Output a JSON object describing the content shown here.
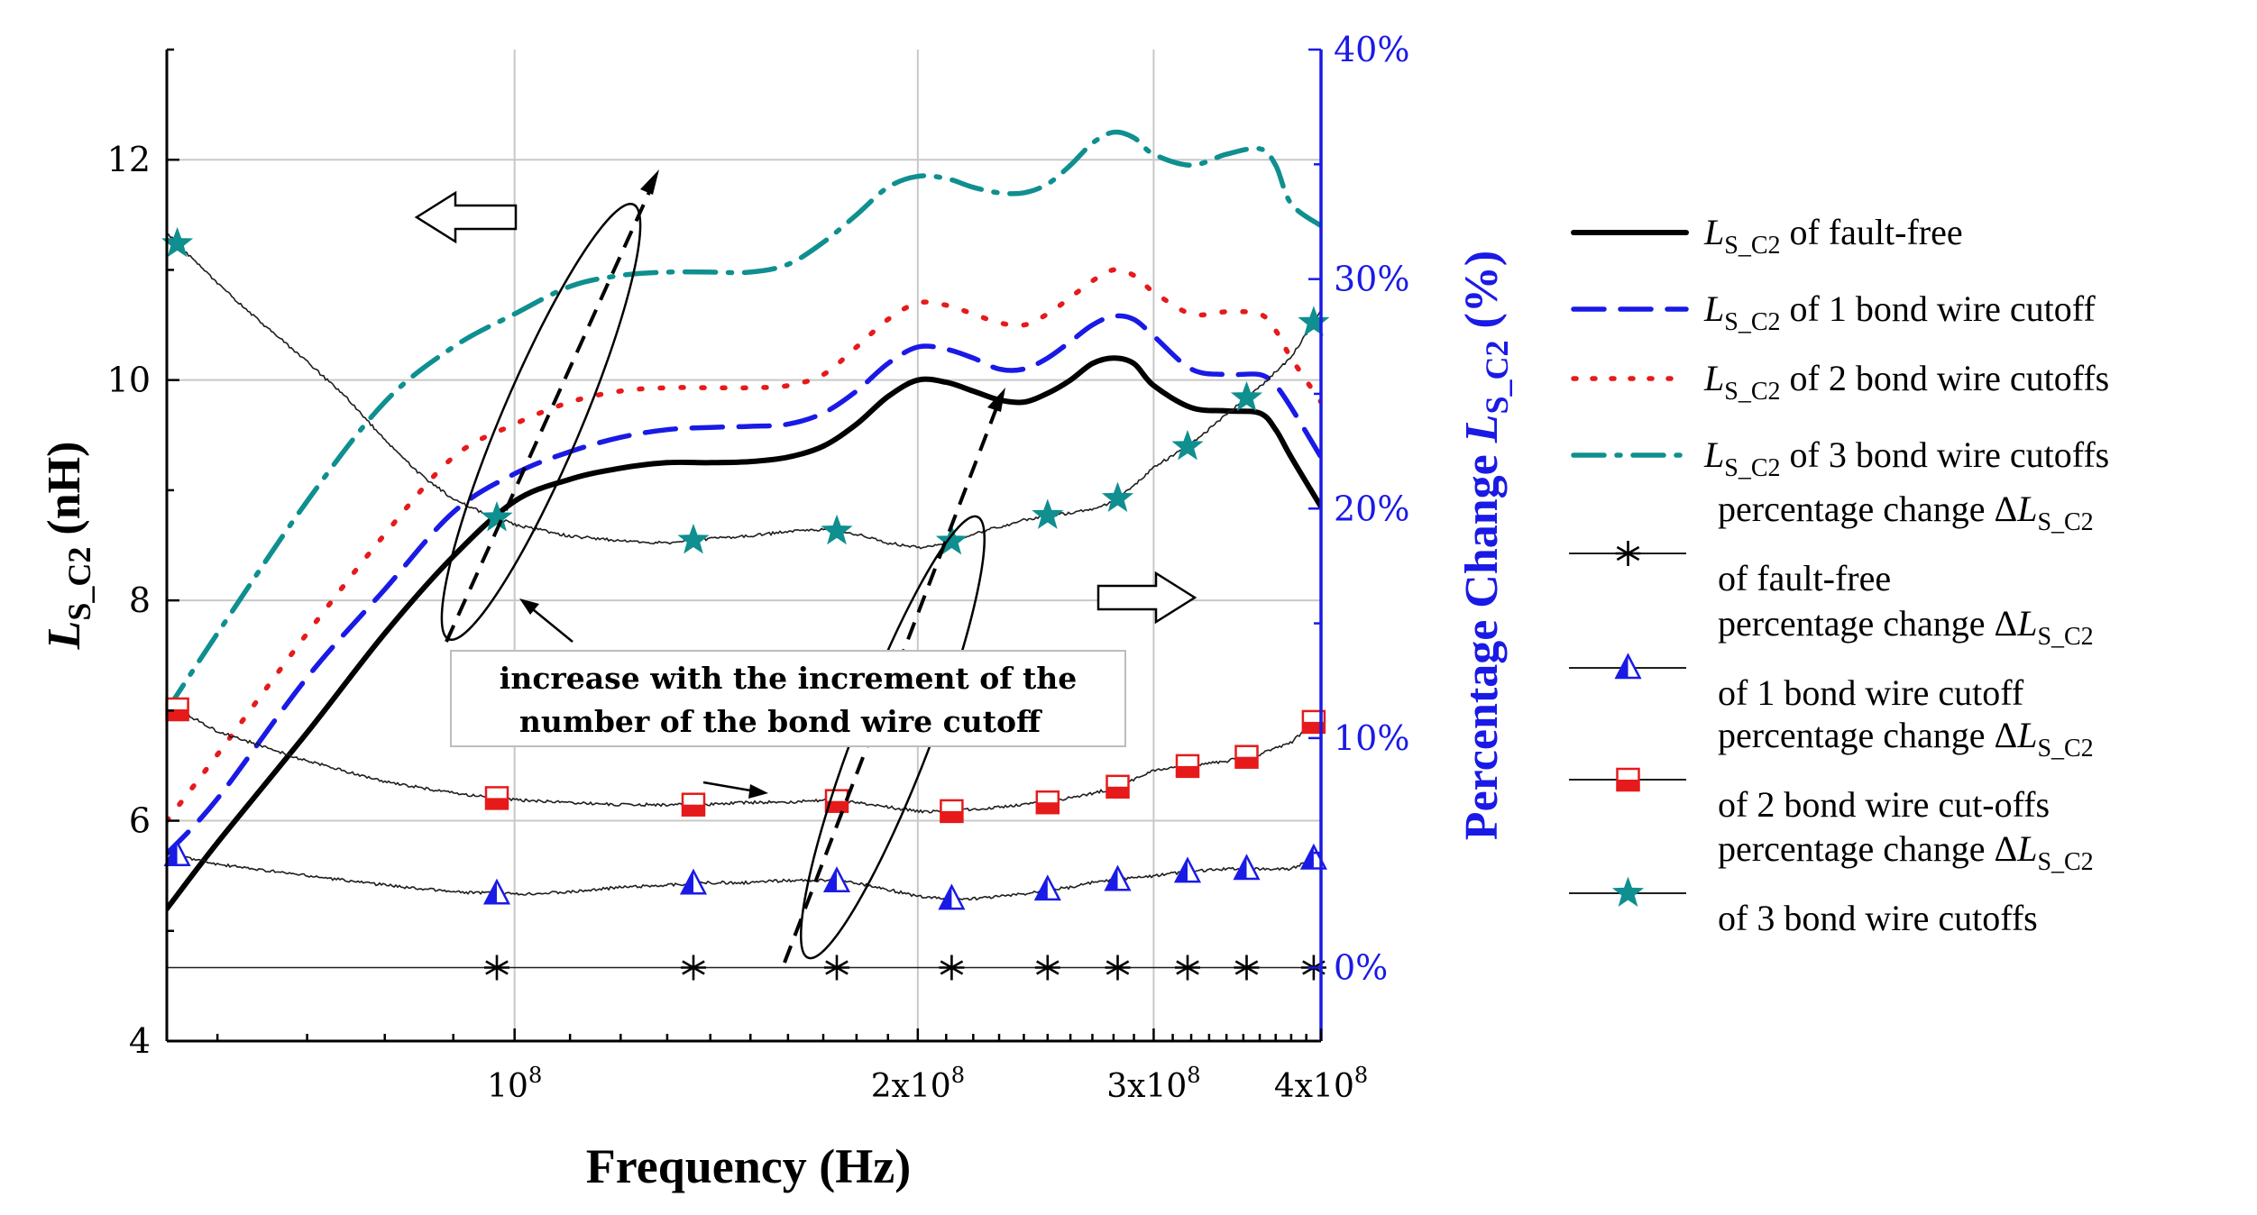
{
  "chart_data": {
    "type": "line",
    "title": "",
    "xlabel": "Frequency (Hz)",
    "xscale": "log",
    "xlim": [
      55000000,
      400000000
    ],
    "x_ticks": [
      {
        "value": 100000000,
        "mantissa": "10",
        "exp": "8"
      },
      {
        "value": 200000000,
        "mantissa": "2x10",
        "exp": "8"
      },
      {
        "value": 300000000,
        "mantissa": "3x10",
        "exp": "8"
      },
      {
        "value": 400000000,
        "mantissa": "4x10",
        "exp": "8"
      }
    ],
    "y_left": {
      "label": {
        "pre": "L",
        "sub": "S_C2",
        "post": " (nH)"
      },
      "lim": [
        4,
        13
      ],
      "ticks": [
        4,
        6,
        8,
        10,
        12
      ]
    },
    "y_right": {
      "label": {
        "pre": "Percentage Change ",
        "ital": "L",
        "sub": "S_C2",
        "post": " (%)"
      },
      "lim": [
        -3.2,
        40
      ],
      "ticks": [
        "0%",
        "10%",
        "20%",
        "30%",
        "40%"
      ],
      "color": "#1a1ae6"
    },
    "grid": true,
    "series": [
      {
        "name": "LS_C2 of fault-free",
        "legend": {
          "pre": "L",
          "sub": "S_C2",
          "post": " of fault-free"
        },
        "axis": "left",
        "style": "solid",
        "color": "#000000",
        "x": [
          55000000.0,
          60000000.0,
          70000000.0,
          80000000.0,
          90000000.0,
          100000000.0,
          110000000.0,
          120000000.0,
          130000000.0,
          140000000.0,
          150000000.0,
          160000000.0,
          170000000.0,
          180000000.0,
          190000000.0,
          200000000.0,
          210000000.0,
          220000000.0,
          230000000.0,
          240000000.0,
          250000000.0,
          260000000.0,
          270000000.0,
          280000000.0,
          290000000.0,
          300000000.0,
          320000000.0,
          340000000.0,
          360000000.0,
          370000000.0,
          380000000.0,
          400000000.0
        ],
        "y": [
          5.2,
          5.8,
          6.8,
          7.7,
          8.4,
          8.9,
          9.1,
          9.2,
          9.25,
          9.25,
          9.26,
          9.3,
          9.4,
          9.6,
          9.85,
          10.0,
          9.98,
          9.9,
          9.82,
          9.8,
          9.88,
          10.0,
          10.15,
          10.2,
          10.15,
          9.95,
          9.75,
          9.72,
          9.7,
          9.55,
          9.3,
          8.85
        ]
      },
      {
        "name": "LS_C2 of 1 bond wire cutoff",
        "legend": {
          "pre": "L",
          "sub": "S_C2",
          "post": " of 1 bond wire cutoff"
        },
        "axis": "left",
        "style": "dash",
        "color": "#1a1ae6",
        "x": [
          55000000.0,
          60000000.0,
          70000000.0,
          80000000.0,
          90000000.0,
          100000000.0,
          110000000.0,
          120000000.0,
          130000000.0,
          140000000.0,
          150000000.0,
          160000000.0,
          170000000.0,
          180000000.0,
          190000000.0,
          200000000.0,
          210000000.0,
          220000000.0,
          230000000.0,
          240000000.0,
          250000000.0,
          260000000.0,
          270000000.0,
          280000000.0,
          290000000.0,
          300000000.0,
          320000000.0,
          340000000.0,
          360000000.0,
          370000000.0,
          380000000.0,
          400000000.0
        ],
        "y": [
          5.7,
          6.2,
          7.3,
          8.1,
          8.8,
          9.15,
          9.35,
          9.48,
          9.55,
          9.57,
          9.58,
          9.6,
          9.7,
          9.9,
          10.15,
          10.3,
          10.28,
          10.2,
          10.1,
          10.1,
          10.2,
          10.35,
          10.5,
          10.58,
          10.55,
          10.4,
          10.1,
          10.05,
          10.05,
          9.95,
          9.75,
          9.3
        ]
      },
      {
        "name": "LS_C2 of 2 bond wire cutoffs",
        "legend": {
          "pre": "L",
          "sub": "S_C2",
          "post": " of 2 bond wire cutoffs"
        },
        "axis": "left",
        "style": "dot",
        "color": "#e61a1a",
        "x": [
          55000000.0,
          60000000.0,
          70000000.0,
          80000000.0,
          90000000.0,
          100000000.0,
          110000000.0,
          120000000.0,
          130000000.0,
          140000000.0,
          150000000.0,
          160000000.0,
          170000000.0,
          180000000.0,
          190000000.0,
          200000000.0,
          210000000.0,
          220000000.0,
          230000000.0,
          240000000.0,
          250000000.0,
          260000000.0,
          270000000.0,
          280000000.0,
          290000000.0,
          300000000.0,
          320000000.0,
          340000000.0,
          360000000.0,
          370000000.0,
          380000000.0,
          400000000.0
        ],
        "y": [
          6.0,
          6.6,
          7.7,
          8.6,
          9.3,
          9.6,
          9.8,
          9.9,
          9.93,
          9.93,
          9.93,
          9.95,
          10.05,
          10.3,
          10.55,
          10.7,
          10.68,
          10.6,
          10.52,
          10.5,
          10.6,
          10.75,
          10.9,
          11.0,
          10.95,
          10.8,
          10.6,
          10.62,
          10.6,
          10.45,
          10.2,
          9.8
        ]
      },
      {
        "name": "LS_C2 of 3 bond wire cutoffs",
        "legend": {
          "pre": "L",
          "sub": "S_C2",
          "post": " of 3 bond wire cutoffs"
        },
        "axis": "left",
        "style": "dashdot",
        "color": "#0f8f8f",
        "x": [
          55000000.0,
          60000000.0,
          70000000.0,
          80000000.0,
          90000000.0,
          100000000.0,
          110000000.0,
          120000000.0,
          130000000.0,
          140000000.0,
          150000000.0,
          160000000.0,
          170000000.0,
          180000000.0,
          190000000.0,
          200000000.0,
          210000000.0,
          220000000.0,
          230000000.0,
          240000000.0,
          250000000.0,
          260000000.0,
          270000000.0,
          280000000.0,
          290000000.0,
          300000000.0,
          320000000.0,
          340000000.0,
          360000000.0,
          370000000.0,
          380000000.0,
          400000000.0
        ],
        "y": [
          7.0,
          7.7,
          8.9,
          9.8,
          10.3,
          10.6,
          10.85,
          10.95,
          10.98,
          10.98,
          10.98,
          11.05,
          11.25,
          11.5,
          11.75,
          11.85,
          11.83,
          11.75,
          11.7,
          11.7,
          11.78,
          11.95,
          12.15,
          12.25,
          12.2,
          12.05,
          11.95,
          12.05,
          12.1,
          11.95,
          11.6,
          11.4
        ]
      },
      {
        "name": "percentage change ΔLS_C2 of fault-free",
        "legend": {
          "line1": "percentage change Δ",
          "ital": "L",
          "sub": "S_C2",
          "line2": "of fault-free"
        },
        "axis": "right",
        "marker": "asterisk",
        "color": "#000000",
        "x": [
          55000000.0,
          80000000.0,
          100000000.0,
          120000000.0,
          140000000.0,
          160000000.0,
          180000000.0,
          200000000.0,
          220000000.0,
          240000000.0,
          260000000.0,
          280000000.0,
          300000000.0,
          320000000.0,
          340000000.0,
          360000000.0,
          380000000.0,
          400000000.0
        ],
        "y": [
          0,
          0,
          0,
          0,
          0,
          0,
          0,
          0,
          0,
          0,
          0,
          0,
          0,
          0,
          0,
          0,
          0,
          0
        ],
        "marker_x": [
          97000000.0,
          136000000.0,
          174000000.0,
          212000000.0,
          250000000.0,
          282000000.0,
          318000000.0,
          352000000.0,
          395000000.0
        ]
      },
      {
        "name": "percentage change ΔLS_C2 of 1 bond wire cutoff",
        "legend": {
          "line1": "percentage change Δ",
          "ital": "L",
          "sub": "S_C2",
          "line2": "of 1 bond wire cutoff"
        },
        "axis": "right",
        "marker": "triangle",
        "color": "#1a1ae6",
        "x": [
          55000000.0,
          60000000.0,
          70000000.0,
          80000000.0,
          90000000.0,
          100000000.0,
          110000000.0,
          120000000.0,
          130000000.0,
          140000000.0,
          150000000.0,
          160000000.0,
          170000000.0,
          180000000.0,
          190000000.0,
          200000000.0,
          210000000.0,
          220000000.0,
          230000000.0,
          240000000.0,
          250000000.0,
          260000000.0,
          270000000.0,
          280000000.0,
          290000000.0,
          300000000.0,
          320000000.0,
          340000000.0,
          360000000.0,
          380000000.0,
          400000000.0
        ],
        "y": [
          5.0,
          4.5,
          4.0,
          3.6,
          3.3,
          3.2,
          3.3,
          3.5,
          3.6,
          3.7,
          3.7,
          3.8,
          3.8,
          3.7,
          3.4,
          3.1,
          3.0,
          3.0,
          3.1,
          3.2,
          3.4,
          3.5,
          3.7,
          3.8,
          3.9,
          4.0,
          4.2,
          4.3,
          4.3,
          4.3,
          4.9
        ],
        "marker_x": [
          56000000.0,
          97000000.0,
          136000000.0,
          174000000.0,
          212000000.0,
          250000000.0,
          282000000.0,
          318000000.0,
          352000000.0,
          395000000.0
        ]
      },
      {
        "name": "percentage change ΔLS_C2 of 2 bond wire cut-offs",
        "legend": {
          "line1": "percentage change Δ",
          "ital": "L",
          "sub": "S_C2",
          "line2": "of 2 bond wire cut-offs"
        },
        "axis": "right",
        "marker": "square",
        "color": "#e61a1a",
        "x": [
          55000000.0,
          60000000.0,
          70000000.0,
          80000000.0,
          90000000.0,
          100000000.0,
          110000000.0,
          120000000.0,
          130000000.0,
          140000000.0,
          150000000.0,
          160000000.0,
          170000000.0,
          180000000.0,
          190000000.0,
          200000000.0,
          210000000.0,
          220000000.0,
          230000000.0,
          240000000.0,
          250000000.0,
          260000000.0,
          270000000.0,
          280000000.0,
          290000000.0,
          300000000.0,
          320000000.0,
          340000000.0,
          360000000.0,
          380000000.0,
          400000000.0
        ],
        "y": [
          11.5,
          10.3,
          9.0,
          8.1,
          7.6,
          7.3,
          7.2,
          7.1,
          7.1,
          7.1,
          7.2,
          7.2,
          7.3,
          7.2,
          7.0,
          6.8,
          6.8,
          6.9,
          7.0,
          7.1,
          7.2,
          7.4,
          7.6,
          7.8,
          8.2,
          8.6,
          8.8,
          9.0,
          9.3,
          9.8,
          11.0
        ],
        "marker_x": [
          56000000.0,
          97000000.0,
          136000000.0,
          174000000.0,
          212000000.0,
          250000000.0,
          282000000.0,
          318000000.0,
          352000000.0,
          395000000.0
        ]
      },
      {
        "name": "percentage change ΔLS_C2 of 3 bond wire cutoffs",
        "legend": {
          "line1": "percentage change Δ",
          "ital": "L",
          "sub": "S_C2",
          "line2": "of 3 bond wire cutoffs"
        },
        "axis": "right",
        "marker": "star",
        "color": "#0f8f8f",
        "x": [
          55000000.0,
          60000000.0,
          65000000.0,
          70000000.0,
          75000000.0,
          80000000.0,
          85000000.0,
          90000000.0,
          95000000.0,
          100000000.0,
          110000000.0,
          120000000.0,
          130000000.0,
          140000000.0,
          150000000.0,
          160000000.0,
          170000000.0,
          180000000.0,
          190000000.0,
          200000000.0,
          210000000.0,
          220000000.0,
          230000000.0,
          240000000.0,
          250000000.0,
          260000000.0,
          270000000.0,
          280000000.0,
          290000000.0,
          300000000.0,
          320000000.0,
          340000000.0,
          360000000.0,
          380000000.0,
          400000000.0
        ],
        "y": [
          32.0,
          29.8,
          28.0,
          26.4,
          24.8,
          23.0,
          21.5,
          20.4,
          19.8,
          19.3,
          18.8,
          18.6,
          18.5,
          18.7,
          18.8,
          19.0,
          19.1,
          18.9,
          18.5,
          18.3,
          18.5,
          18.9,
          19.2,
          19.5,
          19.7,
          19.8,
          20.0,
          20.3,
          21.0,
          21.8,
          22.8,
          24.1,
          25.3,
          26.6,
          28.6
        ],
        "marker_x": [
          56000000.0,
          97000000.0,
          136000000.0,
          174000000.0,
          212000000.0,
          250000000.0,
          282000000.0,
          318000000.0,
          352000000.0,
          395000000.0
        ]
      }
    ],
    "annotations": {
      "callout_line1": "increase with the increment of the",
      "callout_line2": "number of the bond wire cutoff"
    }
  }
}
